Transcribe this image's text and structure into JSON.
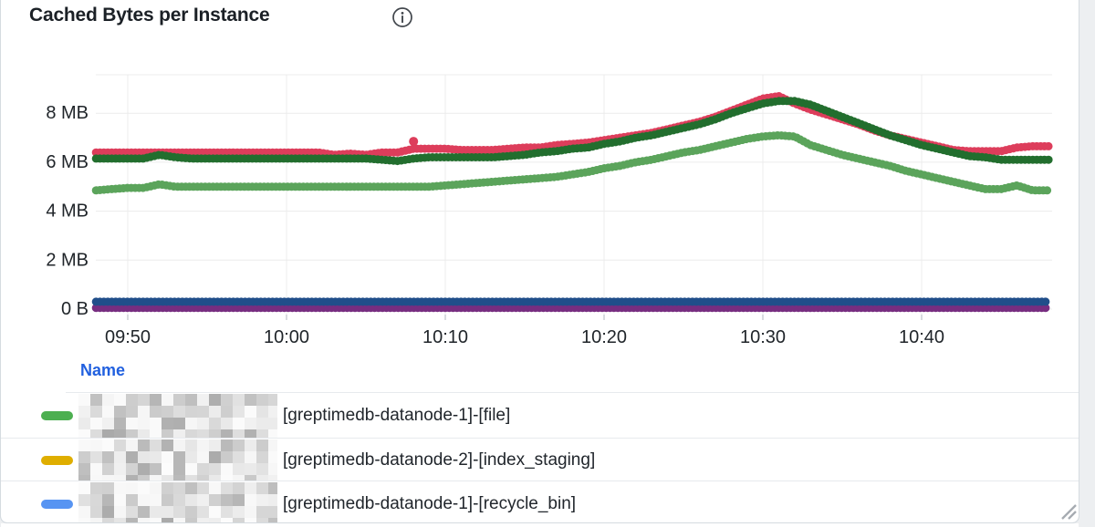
{
  "panel": {
    "title": "Cached Bytes per Instance",
    "info_icon": "info-circle-icon"
  },
  "theme": {
    "panel_border": "#d5dbe0",
    "background": "#ffffff",
    "outside_background": "#edeff1",
    "grid_color": "#ececec",
    "tick_color": "#c9ced3",
    "axis_text_color": "#1f2429",
    "title_color": "#1b2026",
    "link_blue": "#2160df",
    "divider_color": "#e7eaee",
    "resize_handle_color": "#a6abb1"
  },
  "chart_data": {
    "type": "line",
    "render_style": "dense-points",
    "title": "Cached Bytes per Instance",
    "xlabel": "",
    "ylabel": "",
    "unit_mb": "MB",
    "ylim_mb": [
      0,
      9.55
    ],
    "x_range": [
      "09:48",
      "10:48"
    ],
    "grid": "on",
    "legend_position": "bottom-table",
    "y_ticks": [
      {
        "value_mb": 0,
        "label": "0 B"
      },
      {
        "value_mb": 2,
        "label": "2 MB"
      },
      {
        "value_mb": 4,
        "label": "4 MB"
      },
      {
        "value_mb": 6,
        "label": "6 MB"
      },
      {
        "value_mb": 8,
        "label": "8 MB"
      }
    ],
    "x_ticks": [
      "09:50",
      "10:00",
      "10:10",
      "10:20",
      "10:30",
      "10:40"
    ],
    "series": [
      {
        "name": "light-green-series",
        "color": "#5ba45b",
        "start": "09:48",
        "step_minutes": 1,
        "values_mb": [
          4.85,
          4.9,
          4.95,
          4.95,
          5.1,
          5.0,
          5.0,
          5.0,
          5.0,
          5.0,
          5.0,
          5.0,
          5.0,
          5.0,
          5.0,
          5.0,
          5.0,
          5.0,
          5.0,
          5.0,
          5.0,
          5.0,
          5.05,
          5.1,
          5.15,
          5.2,
          5.25,
          5.3,
          5.35,
          5.4,
          5.5,
          5.6,
          5.75,
          5.85,
          6.0,
          6.1,
          6.25,
          6.4,
          6.5,
          6.65,
          6.8,
          6.95,
          7.05,
          7.1,
          7.05,
          6.7,
          6.5,
          6.3,
          6.15,
          6.0,
          5.85,
          5.65,
          5.5,
          5.35,
          5.2,
          5.05,
          4.9,
          4.9,
          5.05,
          4.85,
          4.85
        ]
      },
      {
        "name": "red-series",
        "color": "#dd3d5b",
        "start": "09:48",
        "step_minutes": 1,
        "values_mb": [
          6.4,
          6.4,
          6.4,
          6.4,
          6.4,
          6.4,
          6.4,
          6.4,
          6.4,
          6.4,
          6.4,
          6.4,
          6.4,
          6.4,
          6.4,
          6.3,
          6.35,
          6.3,
          6.4,
          6.4,
          6.55,
          6.55,
          6.55,
          6.5,
          6.5,
          6.5,
          6.55,
          6.6,
          6.6,
          6.7,
          6.75,
          6.8,
          6.9,
          7.0,
          7.1,
          7.2,
          7.35,
          7.5,
          7.65,
          7.85,
          8.1,
          8.35,
          8.6,
          8.7,
          8.4,
          8.15,
          7.95,
          7.75,
          7.55,
          7.3,
          7.1,
          6.95,
          6.8,
          6.65,
          6.5,
          6.45,
          6.45,
          6.45,
          6.6,
          6.65,
          6.65
        ]
      },
      {
        "name": "dark-green-series",
        "color": "#226e2e",
        "start": "09:48",
        "step_minutes": 1,
        "values_mb": [
          6.15,
          6.15,
          6.15,
          6.15,
          6.3,
          6.2,
          6.15,
          6.15,
          6.15,
          6.15,
          6.15,
          6.15,
          6.15,
          6.15,
          6.15,
          6.15,
          6.15,
          6.15,
          6.1,
          6.05,
          6.15,
          6.2,
          6.2,
          6.2,
          6.2,
          6.2,
          6.25,
          6.3,
          6.4,
          6.45,
          6.55,
          6.6,
          6.75,
          6.85,
          7.0,
          7.1,
          7.25,
          7.4,
          7.55,
          7.75,
          8.0,
          8.2,
          8.4,
          8.5,
          8.5,
          8.35,
          8.1,
          7.85,
          7.6,
          7.35,
          7.1,
          6.9,
          6.7,
          6.55,
          6.4,
          6.25,
          6.2,
          6.1,
          6.1,
          6.1,
          6.1
        ]
      },
      {
        "name": "purple-series",
        "color": "#772d80",
        "start": "09:48",
        "step_minutes": 1,
        "constant_mb": 0.05,
        "points": 61
      },
      {
        "name": "blue-series",
        "color": "#204e8a",
        "start": "09:48",
        "step_minutes": 1,
        "constant_mb": 0.3,
        "points": 61
      }
    ],
    "outlier_points": [
      {
        "time": "10:08",
        "value_mb": 6.85,
        "color": "#dd3d5b"
      }
    ]
  },
  "legend": {
    "header": "Name",
    "rows": [
      {
        "color": "#4caf50",
        "redacted_prefix": true,
        "label": "[greptimedb-datanode-1]-[file]"
      },
      {
        "color": "#dfae00",
        "redacted_prefix": true,
        "label": "[greptimedb-datanode-2]-[index_staging]"
      },
      {
        "color": "#5794f2",
        "redacted_prefix": true,
        "label": "[greptimedb-datanode-1]-[recycle_bin]"
      }
    ]
  }
}
